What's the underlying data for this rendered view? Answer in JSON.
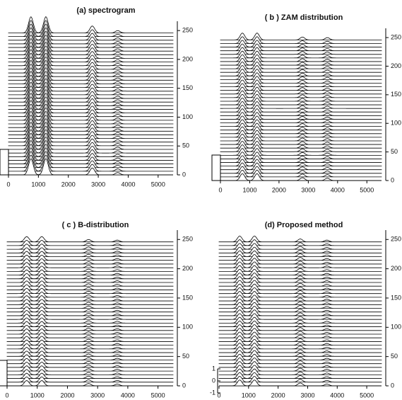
{
  "chart_data": [
    {
      "type": "waterfall",
      "title": "(a)   spectrogram",
      "x": [
        750,
        1250,
        2800,
        3650
      ],
      "values": [
        28,
        28,
        12,
        4
      ],
      "xlim": [
        0,
        5500
      ],
      "xticks": [
        0,
        1000,
        2000,
        3000,
        4000,
        5000
      ],
      "ylim": [
        0,
        260
      ],
      "yticks": [
        0,
        50,
        100,
        150,
        200,
        250
      ]
    },
    {
      "type": "waterfall",
      "title": "( b ) ZAM distribution",
      "x": [
        750,
        1250,
        2800,
        3650
      ],
      "values": [
        12,
        12,
        5,
        4
      ],
      "xlim": [
        0,
        5500
      ],
      "xticks": [
        0,
        1000,
        2000,
        3000,
        4000,
        5000
      ],
      "ylim": [
        0,
        260
      ],
      "yticks": [
        0,
        50,
        100,
        150,
        200,
        250
      ]
    },
    {
      "type": "waterfall",
      "title": "( c )   B-distribution",
      "x": [
        650,
        1150,
        2700,
        3650
      ],
      "values": [
        9,
        9,
        4,
        3
      ],
      "xlim": [
        0,
        5500
      ],
      "xticks": [
        0,
        1000,
        2000,
        3000,
        4000,
        5000
      ],
      "ylim": [
        0,
        260
      ],
      "yticks": [
        0,
        50,
        100,
        150,
        200,
        250
      ]
    },
    {
      "type": "waterfall",
      "title": "(d)  Proposed method",
      "x": [
        700,
        1200,
        2750,
        3650
      ],
      "values": [
        10,
        10,
        5,
        3
      ],
      "xlim": [
        0,
        5500
      ],
      "xticks": [
        0,
        1000,
        2000,
        3000,
        4000,
        5000
      ],
      "ylim": [
        0,
        260
      ],
      "yticks": [
        0,
        50,
        100,
        150,
        200,
        250
      ],
      "left_yticks": [
        1,
        0,
        -1
      ]
    }
  ]
}
